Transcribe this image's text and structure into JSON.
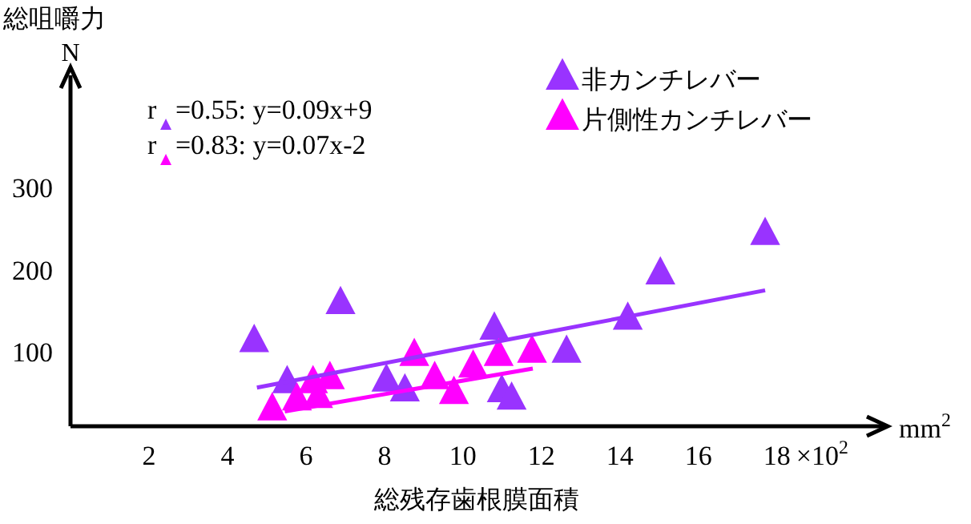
{
  "chart_data": {
    "type": "scatter",
    "xlabel": "総残存歯根膜面積",
    "ylabel": "総咀嚼力",
    "xlim": [
      0,
      20.7
    ],
    "ylim": [
      10,
      440
    ],
    "xticks": [
      2,
      4,
      6,
      8,
      10,
      12,
      14,
      16,
      18
    ],
    "yticks": [
      100,
      200,
      300
    ],
    "grid": false,
    "legend": "top right",
    "marker": "triangle",
    "annotations": [
      "r$_{▲}$=0.55: y=0.09x+9",
      "r$_{▲}$=0.83: y=0.07x-2",
      "N",
      "mm$^{2}$",
      "×10$^{2}$"
    ],
    "series": [
      {
        "name": "非カンチレバー",
        "color": "#9933ff",
        "x": [
          4.68,
          5.52,
          6.88,
          8.05,
          8.52,
          10.8,
          10.99,
          11.24,
          12.64,
          14.2,
          15.03,
          17.7
        ],
        "values": [
          114,
          64,
          160,
          66,
          54,
          129,
          53,
          44,
          101,
          141,
          196,
          244
        ]
      },
      {
        "name": "片側性カンチレバー",
        "color": "#ff00ff",
        "x": [
          5.14,
          5.77,
          6.18,
          6.31,
          6.61,
          8.76,
          9.28,
          9.77,
          10.26,
          10.91,
          11.76
        ],
        "values": [
          31,
          43,
          64,
          46,
          69,
          97,
          69,
          51,
          83,
          97,
          101
        ]
      },
      {
        "type": "line",
        "marker": "none",
        "color": "#9933ff",
        "x": [
          4.75,
          17.7
        ],
        "values": [
          57,
          175
        ]
      },
      {
        "type": "line",
        "marker": "none",
        "color": "#ff00ff",
        "x": [
          5.46,
          11.78
        ],
        "values": [
          28,
          80
        ]
      }
    ]
  }
}
